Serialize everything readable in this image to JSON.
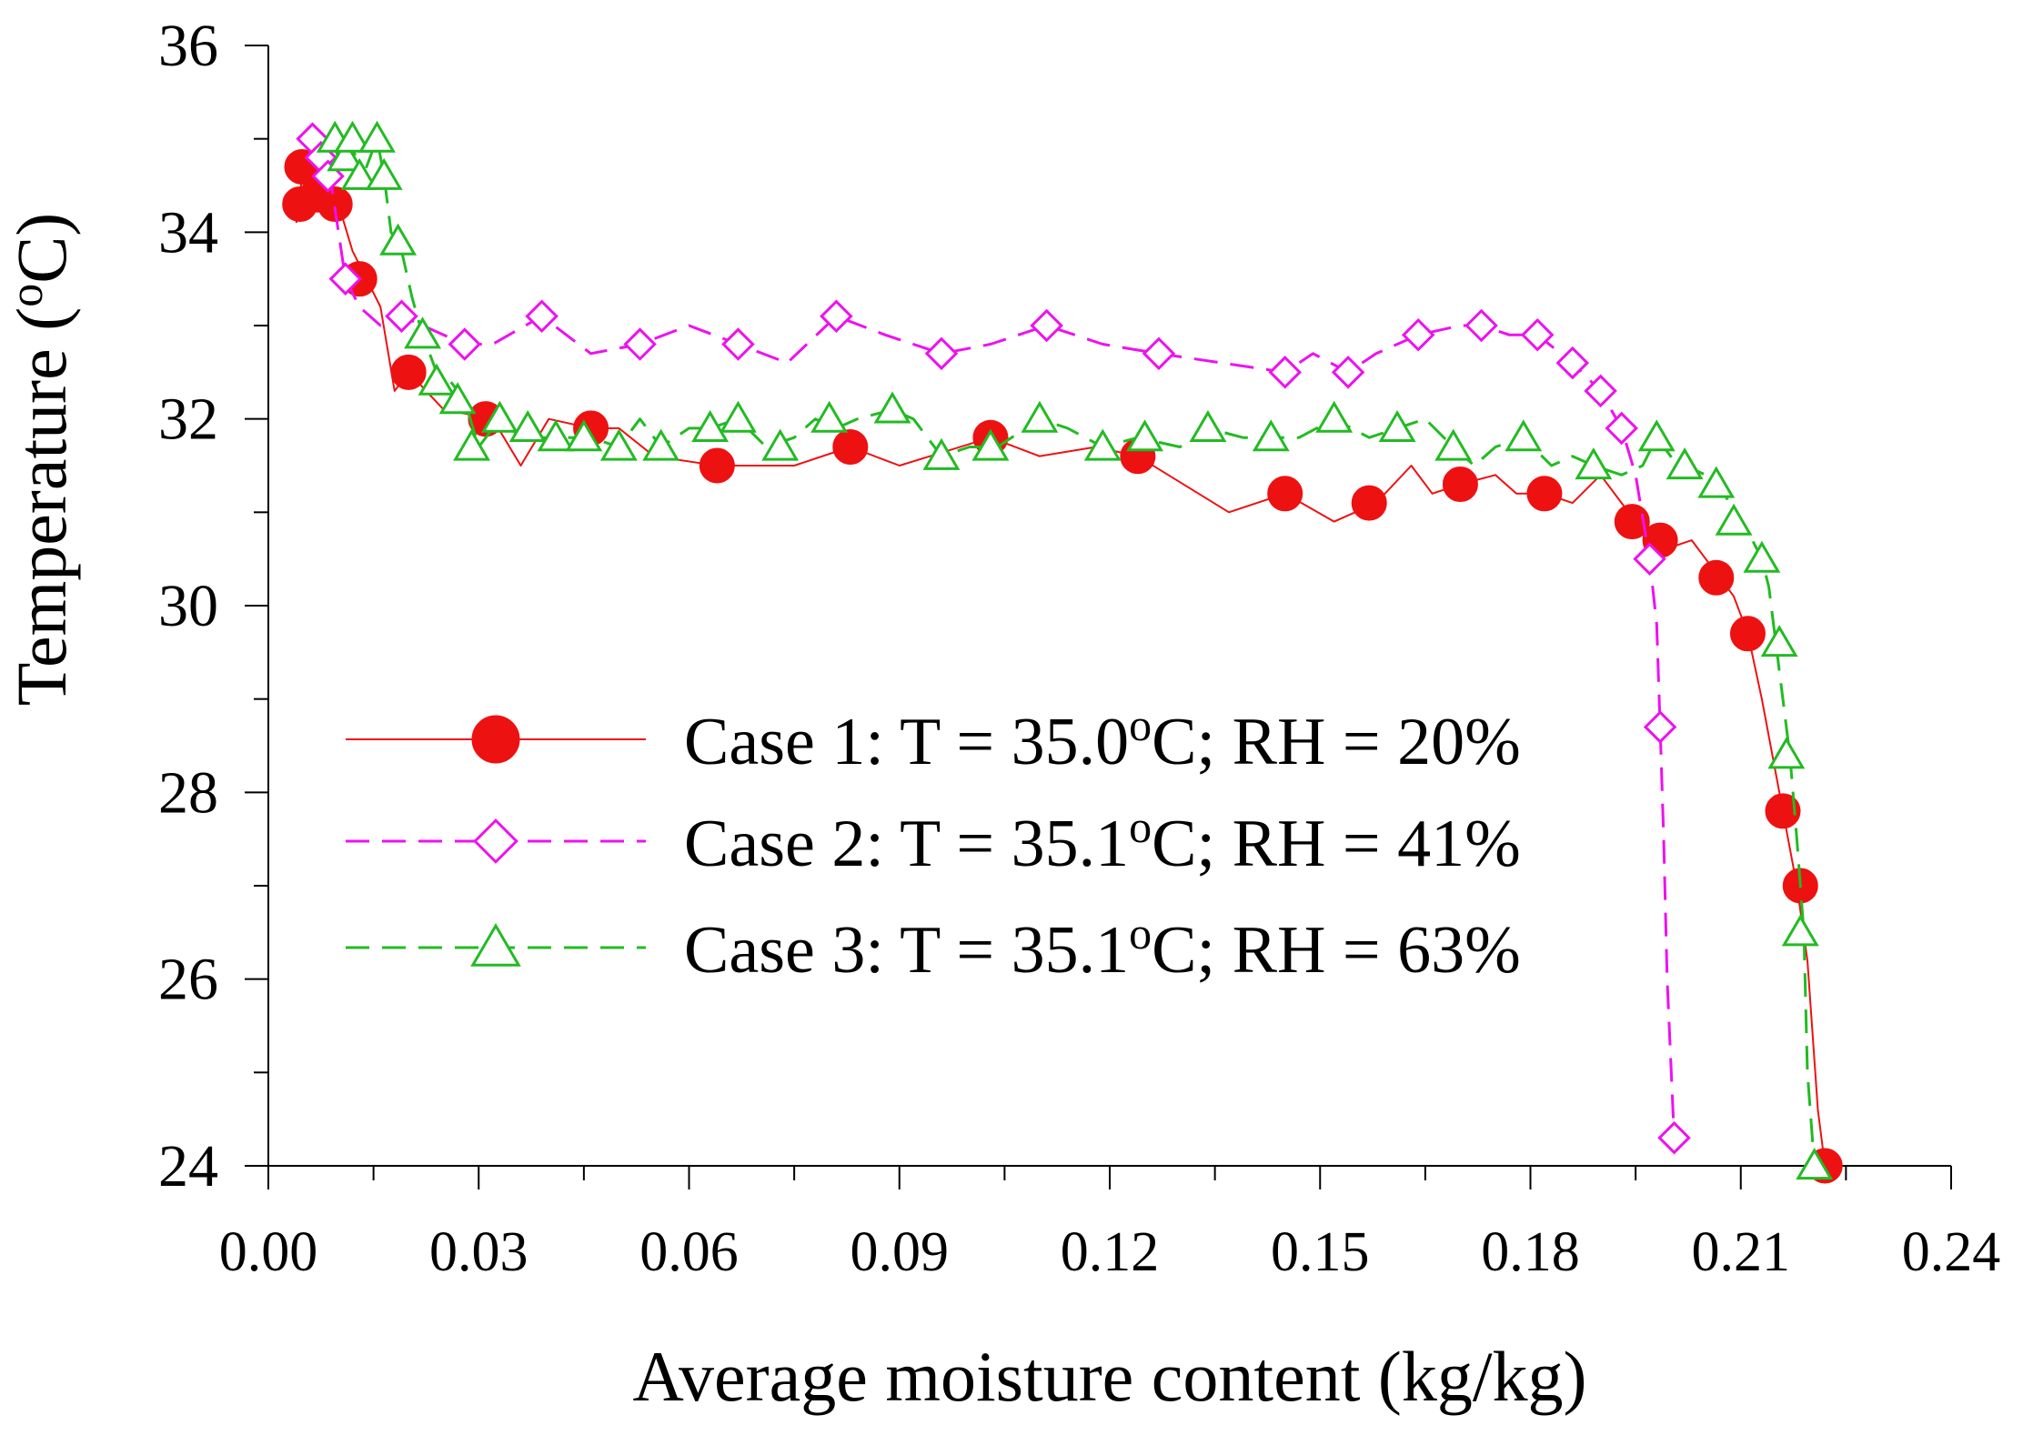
{
  "chart_data": {
    "type": "line",
    "title": "",
    "xlabel": "Average moisture content (kg/kg)",
    "ylabel": "Temperature (°C)",
    "ylabel_parts": {
      "main": "Temperature (",
      "super": "o",
      "end": "C)"
    },
    "xlim": [
      0.0,
      0.24
    ],
    "ylim": [
      24,
      36
    ],
    "xticks": [
      0.0,
      0.03,
      0.06,
      0.09,
      0.12,
      0.15,
      0.18,
      0.21,
      0.24
    ],
    "xtick_labels": [
      "0.00",
      "0.03",
      "0.06",
      "0.09",
      "0.12",
      "0.15",
      "0.18",
      "0.21",
      "0.24"
    ],
    "yticks": [
      24,
      26,
      28,
      30,
      32,
      34,
      36
    ],
    "ytick_labels": [
      "24",
      "26",
      "28",
      "30",
      "32",
      "34",
      "36"
    ],
    "grid": false,
    "legend_position": "center-left",
    "series": [
      {
        "name": "Case 1",
        "legend_parts": [
          "Case 1: T = 35.0",
          "o",
          "C; RH = 20%"
        ],
        "color": "#ee1111",
        "line_style": "solid",
        "marker": "filled-circle",
        "line": [
          [
            0.004,
            34.1
          ],
          [
            0.005,
            34.7
          ],
          [
            0.006,
            34.5
          ],
          [
            0.008,
            34.4
          ],
          [
            0.01,
            34.3
          ],
          [
            0.012,
            33.8
          ],
          [
            0.014,
            33.5
          ],
          [
            0.016,
            33.2
          ],
          [
            0.018,
            32.3
          ],
          [
            0.02,
            32.5
          ],
          [
            0.025,
            32.1
          ],
          [
            0.032,
            32.0
          ],
          [
            0.036,
            31.5
          ],
          [
            0.04,
            32.0
          ],
          [
            0.046,
            31.9
          ],
          [
            0.05,
            31.9
          ],
          [
            0.055,
            31.6
          ],
          [
            0.064,
            31.5
          ],
          [
            0.075,
            31.5
          ],
          [
            0.083,
            31.7
          ],
          [
            0.09,
            31.5
          ],
          [
            0.103,
            31.8
          ],
          [
            0.11,
            31.6
          ],
          [
            0.118,
            31.7
          ],
          [
            0.124,
            31.6
          ],
          [
            0.137,
            31.0
          ],
          [
            0.145,
            31.2
          ],
          [
            0.152,
            30.9
          ],
          [
            0.158,
            31.1
          ],
          [
            0.163,
            31.5
          ],
          [
            0.166,
            31.2
          ],
          [
            0.17,
            31.3
          ],
          [
            0.175,
            31.4
          ],
          [
            0.178,
            31.2
          ],
          [
            0.182,
            31.2
          ],
          [
            0.186,
            31.1
          ],
          [
            0.19,
            31.4
          ],
          [
            0.195,
            30.9
          ],
          [
            0.199,
            30.6
          ],
          [
            0.203,
            30.7
          ],
          [
            0.207,
            30.3
          ],
          [
            0.209,
            30.1
          ],
          [
            0.211,
            29.7
          ],
          [
            0.213,
            29.0
          ],
          [
            0.215,
            28.2
          ],
          [
            0.216,
            27.8
          ],
          [
            0.218,
            27.0
          ],
          [
            0.2195,
            26.2
          ],
          [
            0.221,
            24.6
          ],
          [
            0.222,
            24.0
          ]
        ],
        "markers": [
          [
            0.0045,
            34.3
          ],
          [
            0.0048,
            34.7
          ],
          [
            0.007,
            34.4
          ],
          [
            0.0095,
            34.3
          ],
          [
            0.013,
            33.5
          ],
          [
            0.02,
            32.5
          ],
          [
            0.031,
            32.0
          ],
          [
            0.046,
            31.9
          ],
          [
            0.064,
            31.5
          ],
          [
            0.083,
            31.7
          ],
          [
            0.103,
            31.8
          ],
          [
            0.124,
            31.6
          ],
          [
            0.145,
            31.2
          ],
          [
            0.157,
            31.1
          ],
          [
            0.17,
            31.3
          ],
          [
            0.182,
            31.2
          ],
          [
            0.1945,
            30.9
          ],
          [
            0.1985,
            30.7
          ],
          [
            0.2065,
            30.3
          ],
          [
            0.211,
            29.7
          ],
          [
            0.216,
            27.8
          ],
          [
            0.2185,
            27.0
          ],
          [
            0.222,
            24.0
          ]
        ]
      },
      {
        "name": "Case 2",
        "legend_parts": [
          "Case 2: T = 35.1",
          "o",
          "C; RH = 41%"
        ],
        "color": "#ee11ee",
        "line_style": "dashed",
        "marker": "open-diamond",
        "line": [
          [
            0.006,
            35.0
          ],
          [
            0.007,
            34.9
          ],
          [
            0.008,
            34.7
          ],
          [
            0.009,
            34.5
          ],
          [
            0.01,
            34.0
          ],
          [
            0.011,
            33.5
          ],
          [
            0.013,
            33.2
          ],
          [
            0.016,
            33.0
          ],
          [
            0.019,
            33.1
          ],
          [
            0.022,
            33.0
          ],
          [
            0.028,
            32.8
          ],
          [
            0.032,
            32.8
          ],
          [
            0.039,
            33.1
          ],
          [
            0.046,
            32.7
          ],
          [
            0.053,
            32.8
          ],
          [
            0.06,
            33.0
          ],
          [
            0.067,
            32.8
          ],
          [
            0.074,
            32.6
          ],
          [
            0.081,
            33.1
          ],
          [
            0.088,
            32.9
          ],
          [
            0.096,
            32.7
          ],
          [
            0.103,
            32.8
          ],
          [
            0.111,
            33.0
          ],
          [
            0.119,
            32.8
          ],
          [
            0.127,
            32.7
          ],
          [
            0.136,
            32.6
          ],
          [
            0.145,
            32.5
          ],
          [
            0.149,
            32.7
          ],
          [
            0.154,
            32.5
          ],
          [
            0.158,
            32.7
          ],
          [
            0.164,
            32.9
          ],
          [
            0.17,
            33.0
          ],
          [
            0.173,
            33.0
          ],
          [
            0.177,
            32.9
          ],
          [
            0.181,
            32.9
          ],
          [
            0.186,
            32.6
          ],
          [
            0.19,
            32.3
          ],
          [
            0.193,
            31.9
          ],
          [
            0.195,
            31.4
          ],
          [
            0.197,
            30.5
          ],
          [
            0.198,
            29.8
          ],
          [
            0.1985,
            28.7
          ],
          [
            0.199,
            27.5
          ],
          [
            0.1995,
            26.0
          ],
          [
            0.2005,
            24.3
          ]
        ],
        "markers": [
          [
            0.0063,
            35.0
          ],
          [
            0.0075,
            34.8
          ],
          [
            0.0085,
            34.6
          ],
          [
            0.011,
            33.5
          ],
          [
            0.019,
            33.1
          ],
          [
            0.028,
            32.8
          ],
          [
            0.039,
            33.1
          ],
          [
            0.053,
            32.8
          ],
          [
            0.067,
            32.8
          ],
          [
            0.081,
            33.1
          ],
          [
            0.096,
            32.7
          ],
          [
            0.111,
            33.0
          ],
          [
            0.127,
            32.7
          ],
          [
            0.145,
            32.5
          ],
          [
            0.154,
            32.5
          ],
          [
            0.164,
            32.9
          ],
          [
            0.173,
            33.0
          ],
          [
            0.181,
            32.9
          ],
          [
            0.186,
            32.6
          ],
          [
            0.19,
            32.3
          ],
          [
            0.193,
            31.9
          ],
          [
            0.197,
            30.5
          ],
          [
            0.1985,
            28.7
          ],
          [
            0.2005,
            24.3
          ]
        ]
      },
      {
        "name": "Case 3",
        "legend_parts": [
          "Case 3: T = 35.1",
          "o",
          "C; RH = 63%"
        ],
        "color": "#22bb22",
        "line_style": "dashed",
        "marker": "open-triangle",
        "line": [
          [
            0.009,
            35.0
          ],
          [
            0.01,
            34.8
          ],
          [
            0.011,
            34.9
          ],
          [
            0.012,
            35.0
          ],
          [
            0.013,
            34.5
          ],
          [
            0.014,
            34.7
          ],
          [
            0.0155,
            35.0
          ],
          [
            0.0165,
            34.6
          ],
          [
            0.0175,
            34.0
          ],
          [
            0.019,
            33.8
          ],
          [
            0.0205,
            33.3
          ],
          [
            0.022,
            32.9
          ],
          [
            0.024,
            32.5
          ],
          [
            0.026,
            32.4
          ],
          [
            0.028,
            32.2
          ],
          [
            0.03,
            31.7
          ],
          [
            0.033,
            32.0
          ],
          [
            0.036,
            31.8
          ],
          [
            0.041,
            31.8
          ],
          [
            0.046,
            31.8
          ],
          [
            0.05,
            31.7
          ],
          [
            0.053,
            32.0
          ],
          [
            0.056,
            31.7
          ],
          [
            0.06,
            31.9
          ],
          [
            0.063,
            31.9
          ],
          [
            0.067,
            32.0
          ],
          [
            0.071,
            31.7
          ],
          [
            0.075,
            31.8
          ],
          [
            0.078,
            32.0
          ],
          [
            0.081,
            31.9
          ],
          [
            0.084,
            32.0
          ],
          [
            0.089,
            32.1
          ],
          [
            0.092,
            32.0
          ],
          [
            0.096,
            31.6
          ],
          [
            0.1,
            31.7
          ],
          [
            0.104,
            31.7
          ],
          [
            0.11,
            32.0
          ],
          [
            0.114,
            31.9
          ],
          [
            0.119,
            31.7
          ],
          [
            0.124,
            31.8
          ],
          [
            0.13,
            31.7
          ],
          [
            0.134,
            31.9
          ],
          [
            0.139,
            31.8
          ],
          [
            0.143,
            31.8
          ],
          [
            0.147,
            31.8
          ],
          [
            0.152,
            32.0
          ],
          [
            0.157,
            31.8
          ],
          [
            0.161,
            31.9
          ],
          [
            0.165,
            32.0
          ],
          [
            0.169,
            31.7
          ],
          [
            0.172,
            31.5
          ],
          [
            0.175,
            31.7
          ],
          [
            0.179,
            31.8
          ],
          [
            0.183,
            31.5
          ],
          [
            0.186,
            31.6
          ],
          [
            0.189,
            31.5
          ],
          [
            0.193,
            31.4
          ],
          [
            0.196,
            31.5
          ],
          [
            0.198,
            31.8
          ],
          [
            0.2,
            31.6
          ],
          [
            0.202,
            31.5
          ],
          [
            0.205,
            31.4
          ],
          [
            0.207,
            31.3
          ],
          [
            0.209,
            31.0
          ],
          [
            0.211,
            30.8
          ],
          [
            0.213,
            30.5
          ],
          [
            0.214,
            30.2
          ],
          [
            0.215,
            29.6
          ],
          [
            0.216,
            29.0
          ],
          [
            0.217,
            28.4
          ],
          [
            0.218,
            27.5
          ],
          [
            0.219,
            26.5
          ],
          [
            0.2195,
            25.0
          ],
          [
            0.2205,
            24.0
          ]
        ],
        "markers": [
          [
            0.0095,
            35.0
          ],
          [
            0.011,
            34.8
          ],
          [
            0.012,
            35.0
          ],
          [
            0.013,
            34.6
          ],
          [
            0.0155,
            35.0
          ],
          [
            0.0165,
            34.6
          ],
          [
            0.0185,
            33.9
          ],
          [
            0.022,
            32.9
          ],
          [
            0.024,
            32.4
          ],
          [
            0.027,
            32.2
          ],
          [
            0.029,
            31.7
          ],
          [
            0.033,
            32.0
          ],
          [
            0.037,
            31.9
          ],
          [
            0.041,
            31.8
          ],
          [
            0.045,
            31.8
          ],
          [
            0.05,
            31.7
          ],
          [
            0.056,
            31.7
          ],
          [
            0.063,
            31.9
          ],
          [
            0.067,
            32.0
          ],
          [
            0.073,
            31.7
          ],
          [
            0.08,
            32.0
          ],
          [
            0.089,
            32.1
          ],
          [
            0.096,
            31.6
          ],
          [
            0.103,
            31.7
          ],
          [
            0.11,
            32.0
          ],
          [
            0.119,
            31.7
          ],
          [
            0.125,
            31.8
          ],
          [
            0.134,
            31.9
          ],
          [
            0.143,
            31.8
          ],
          [
            0.152,
            32.0
          ],
          [
            0.161,
            31.9
          ],
          [
            0.169,
            31.7
          ],
          [
            0.179,
            31.8
          ],
          [
            0.189,
            31.5
          ],
          [
            0.198,
            31.8
          ],
          [
            0.202,
            31.5
          ],
          [
            0.2065,
            31.3
          ],
          [
            0.209,
            30.9
          ],
          [
            0.213,
            30.5
          ],
          [
            0.2155,
            29.6
          ],
          [
            0.2165,
            28.4
          ],
          [
            0.2185,
            26.5
          ],
          [
            0.2205,
            24.0
          ]
        ]
      }
    ]
  }
}
